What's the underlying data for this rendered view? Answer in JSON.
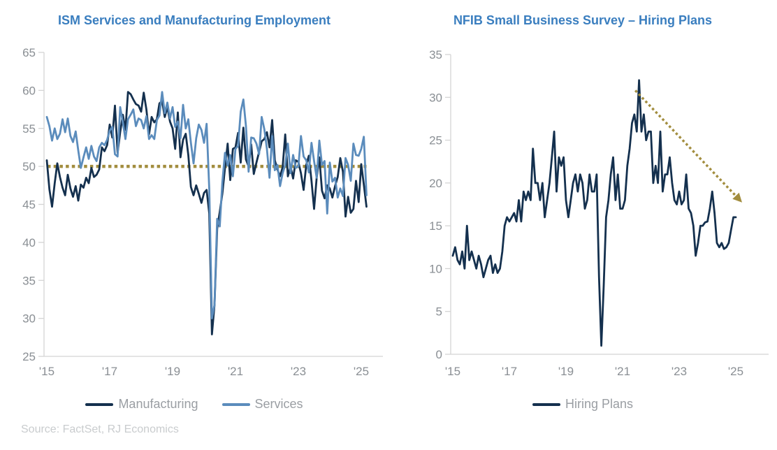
{
  "source_note": "Source: FactSet, RJ Economics",
  "colors": {
    "title_blue": "#3A7EBF",
    "manufacturing_navy": "#14304E",
    "services_blue": "#5B8CBC",
    "gold_accent": "#A28D3E",
    "axis_line": "#D4D4D4",
    "tick_label_gray": "#8A8F94",
    "legend_label_gray": "#9A9EA3",
    "source_gray": "#C9CCCE"
  },
  "chart_data": [
    {
      "type": "line",
      "title": "ISM Services and Manufacturing Employment",
      "start_year": 2015,
      "months_per_point": 1,
      "ylim": [
        25,
        65
      ],
      "y_ticks": [
        25,
        30,
        35,
        40,
        45,
        50,
        55,
        60,
        65
      ],
      "x_tick_labels": [
        "'15",
        "'17",
        "'19",
        "'21",
        "'23",
        "'25"
      ],
      "x_tick_years": [
        2015,
        2017,
        2019,
        2021,
        2023,
        2025
      ],
      "grid": false,
      "legend_position": "bottom",
      "reference_line": {
        "value": 50,
        "style": "dotted",
        "color": "#A28D3E"
      },
      "series": [
        {
          "name": "Manufacturing",
          "color": "#14304E",
          "values": [
            50.8,
            47.0,
            44.7,
            47.8,
            50.4,
            48.6,
            47.2,
            46.2,
            48.9,
            47.1,
            46.0,
            47.4,
            45.5,
            47.6,
            47.2,
            48.5,
            47.8,
            49.8,
            48.6,
            48.9,
            49.6,
            52.5,
            52.0,
            52.8,
            55.5,
            53.8,
            58.0,
            51.8,
            54.5,
            56.8,
            54.8,
            59.8,
            59.5,
            58.8,
            58.2,
            58.0,
            57.2,
            59.7,
            57.5,
            54.2,
            56.5,
            55.8,
            56.2,
            58.3,
            58.6,
            56.5,
            57.8,
            55.9,
            55.0,
            52.3,
            57.1,
            51.2,
            53.5,
            54.3,
            51.5,
            47.3,
            46.2,
            47.5,
            46.4,
            45.2,
            46.5,
            46.9,
            43.8,
            27.9,
            31.8,
            41.8,
            44.0,
            46.4,
            49.8,
            53.0,
            48.2,
            52.3,
            52.5,
            54.4,
            50.5,
            55.1,
            50.9,
            50.0,
            52.9,
            49.0,
            50.5,
            51.9,
            53.3,
            53.6,
            54.5,
            52.5,
            56.1,
            50.8,
            49.6,
            48.7,
            49.9,
            54.2,
            48.7,
            50.0,
            48.4,
            50.8,
            50.6,
            49.1,
            46.9,
            50.2,
            51.4,
            48.1,
            44.4,
            48.5,
            51.2,
            46.8,
            45.8,
            47.5,
            47.1,
            45.9,
            47.4,
            48.6,
            51.1,
            49.3,
            43.4,
            46.0,
            43.9,
            44.4,
            48.1,
            45.3,
            50.3,
            47.6,
            44.7
          ]
        },
        {
          "name": "Services",
          "color": "#5B8CBC",
          "values": [
            56.5,
            55.3,
            53.4,
            55.0,
            53.6,
            54.3,
            56.2,
            54.5,
            56.3,
            54.0,
            53.2,
            54.6,
            52.1,
            49.8,
            51.2,
            52.5,
            51.0,
            52.7,
            51.3,
            50.7,
            52.5,
            53.1,
            52.8,
            53.5,
            54.7,
            55.2,
            51.6,
            51.3,
            57.8,
            55.8,
            53.6,
            56.2,
            56.8,
            57.5,
            55.3,
            56.3,
            56.1,
            55.0,
            56.6,
            53.6,
            54.1,
            53.6,
            56.1,
            56.7,
            59.8,
            57.0,
            58.4,
            56.3,
            57.8,
            55.2,
            55.9,
            53.7,
            58.1,
            55.0,
            56.2,
            53.1,
            50.4,
            53.7,
            55.5,
            54.8,
            53.1,
            55.6,
            47.0,
            30.0,
            31.8,
            43.1,
            42.1,
            47.9,
            51.8,
            50.1,
            51.5,
            48.7,
            52.3,
            52.7,
            57.2,
            58.8,
            55.3,
            49.3,
            53.8,
            53.7,
            53.0,
            51.6,
            56.5,
            54.9,
            52.3,
            48.5,
            54.0,
            49.5,
            50.2,
            47.4,
            49.1,
            50.2,
            53.0,
            49.1,
            51.5,
            49.8,
            50.0,
            54.0,
            51.3,
            50.8,
            49.2,
            53.1,
            50.7,
            48.5,
            53.4,
            50.2,
            50.7,
            43.8,
            50.5,
            48.0,
            48.5,
            45.9,
            47.1,
            46.1,
            51.1,
            50.2,
            48.1,
            53.0,
            51.5,
            51.4,
            52.3,
            53.9,
            46.2
          ]
        }
      ]
    },
    {
      "type": "line",
      "title": "NFIB Small Business Survey – Hiring Plans",
      "start_year": 2015,
      "months_per_point": 1,
      "ylim": [
        0,
        35
      ],
      "y_ticks": [
        0,
        5,
        10,
        15,
        20,
        25,
        30,
        35
      ],
      "x_tick_labels": [
        "'15",
        "'17",
        "'19",
        "'21",
        "'23",
        "'25"
      ],
      "x_tick_years": [
        2015,
        2017,
        2019,
        2021,
        2023,
        2025
      ],
      "grid": false,
      "legend_position": "bottom",
      "trend_arrow": {
        "from": {
          "year": 2021.45,
          "value": 30.8
        },
        "to": {
          "year": 2025.0,
          "value": 18.5
        },
        "style": "dotted",
        "color": "#A28D3E"
      },
      "series": [
        {
          "name": "Hiring Plans",
          "color": "#14304E",
          "values": [
            11.5,
            12.5,
            11,
            10.5,
            12,
            10,
            15,
            11,
            12,
            11,
            10,
            11.5,
            10.5,
            9,
            10,
            11,
            11.5,
            9.5,
            10.5,
            9.5,
            10,
            12,
            15,
            16,
            15.5,
            16,
            16.5,
            15.5,
            18,
            15.5,
            19,
            18,
            19,
            18,
            24,
            20,
            20,
            18,
            20,
            16,
            18,
            20,
            23,
            26,
            19,
            23,
            22,
            23,
            18,
            16,
            18,
            20,
            21,
            19,
            21,
            20,
            17,
            18,
            21,
            19,
            19,
            21,
            9,
            1,
            8,
            16,
            18,
            21,
            23,
            18,
            21,
            17,
            17,
            18,
            22,
            24,
            27,
            28,
            26,
            32,
            26,
            28,
            25,
            26,
            26,
            20,
            22,
            20,
            26,
            19,
            21,
            21,
            23,
            20,
            18,
            17.5,
            19,
            17.5,
            18,
            21,
            17,
            16.5,
            15,
            11.5,
            13,
            15,
            15,
            15.4,
            15.5,
            17,
            19,
            16.5,
            13,
            12.5,
            13,
            12.3,
            12.5,
            13,
            14.5,
            16,
            16
          ]
        }
      ]
    }
  ]
}
